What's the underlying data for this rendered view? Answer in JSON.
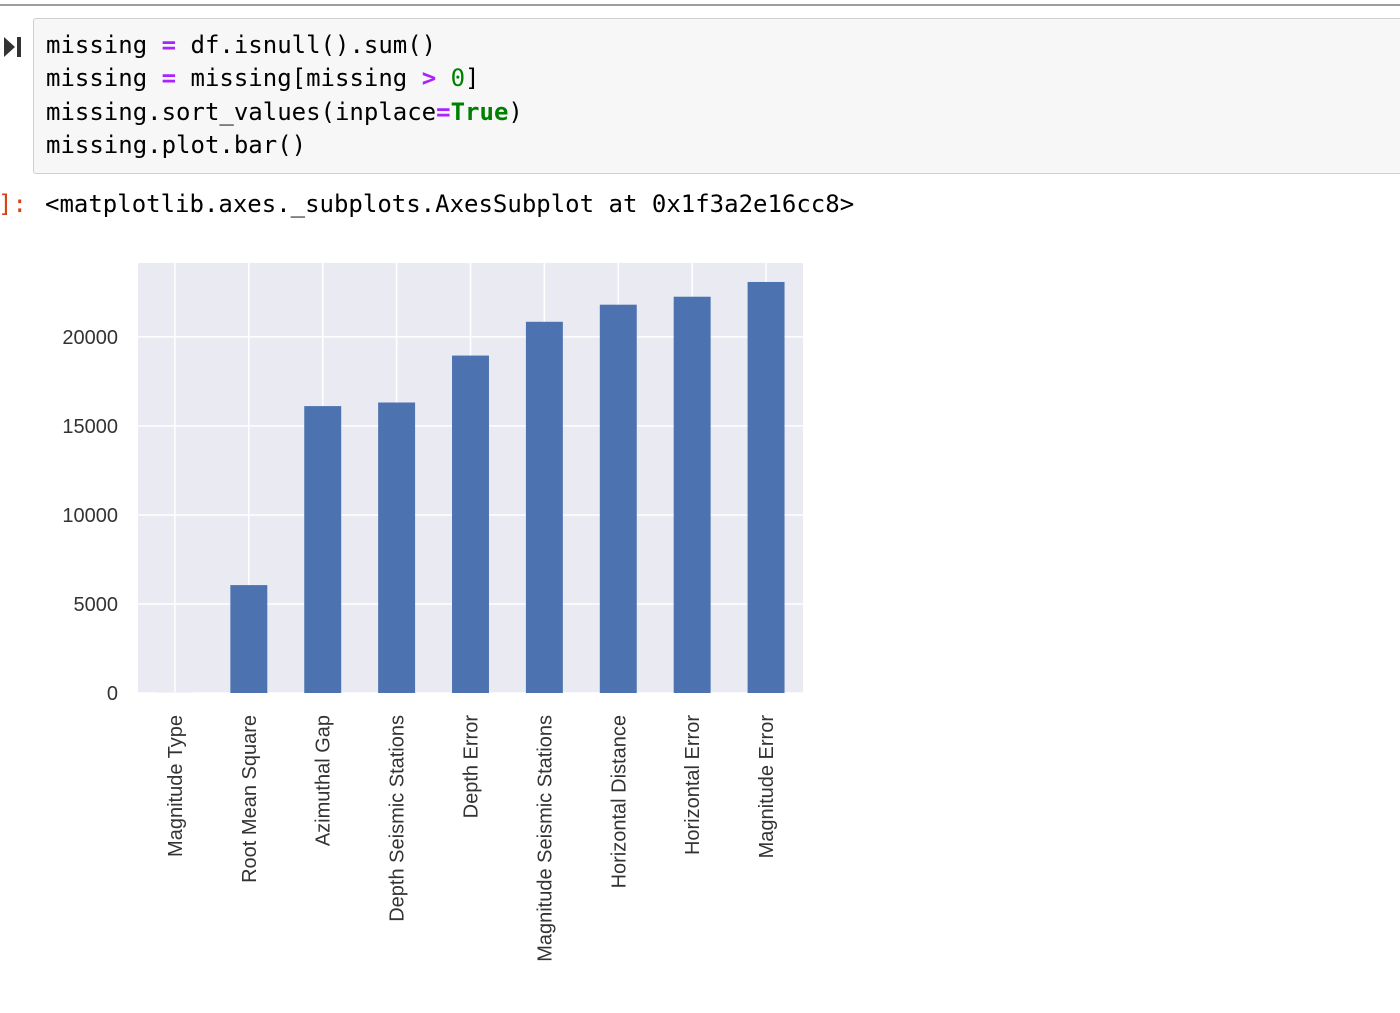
{
  "cell": {
    "code_lines": [
      [
        {
          "t": "missing "
        },
        {
          "t": "=",
          "c": "op"
        },
        {
          "t": " df.isnull().sum()"
        }
      ],
      [
        {
          "t": "missing "
        },
        {
          "t": "=",
          "c": "op"
        },
        {
          "t": " missing[missing "
        },
        {
          "t": ">",
          "c": "op"
        },
        {
          "t": " "
        },
        {
          "t": "0",
          "c": "num"
        },
        {
          "t": "]"
        }
      ],
      [
        {
          "t": "missing.sort_values(inplace"
        },
        {
          "t": "=",
          "c": "op"
        },
        {
          "t": "True",
          "c": "kw"
        },
        {
          "t": ")"
        }
      ],
      [
        {
          "t": "missing.plot.bar()"
        }
      ]
    ]
  },
  "output": {
    "prompt": "]:",
    "text": "<matplotlib.axes._subplots.AxesSubplot at 0x1f3a2e16cc8>"
  },
  "chart_data": {
    "type": "bar",
    "categories": [
      "Magnitude Type",
      "Root Mean Square",
      "Azimuthal Gap",
      "Depth Seismic Stations",
      "Depth Error",
      "Magnitude Seismic Stations",
      "Horizontal Distance",
      "Horizontal Error",
      "Magnitude Error"
    ],
    "values": [
      3,
      6060,
      16113,
      16315,
      18951,
      20848,
      21808,
      22256,
      23085
    ],
    "ylim": [
      0,
      24150
    ],
    "yticks": [
      0,
      5000,
      10000,
      15000,
      20000
    ],
    "grid": true,
    "colors": {
      "bar": "#4c72b0",
      "axes_bg": "#eaeaf2",
      "grid": "#ffffff"
    }
  }
}
